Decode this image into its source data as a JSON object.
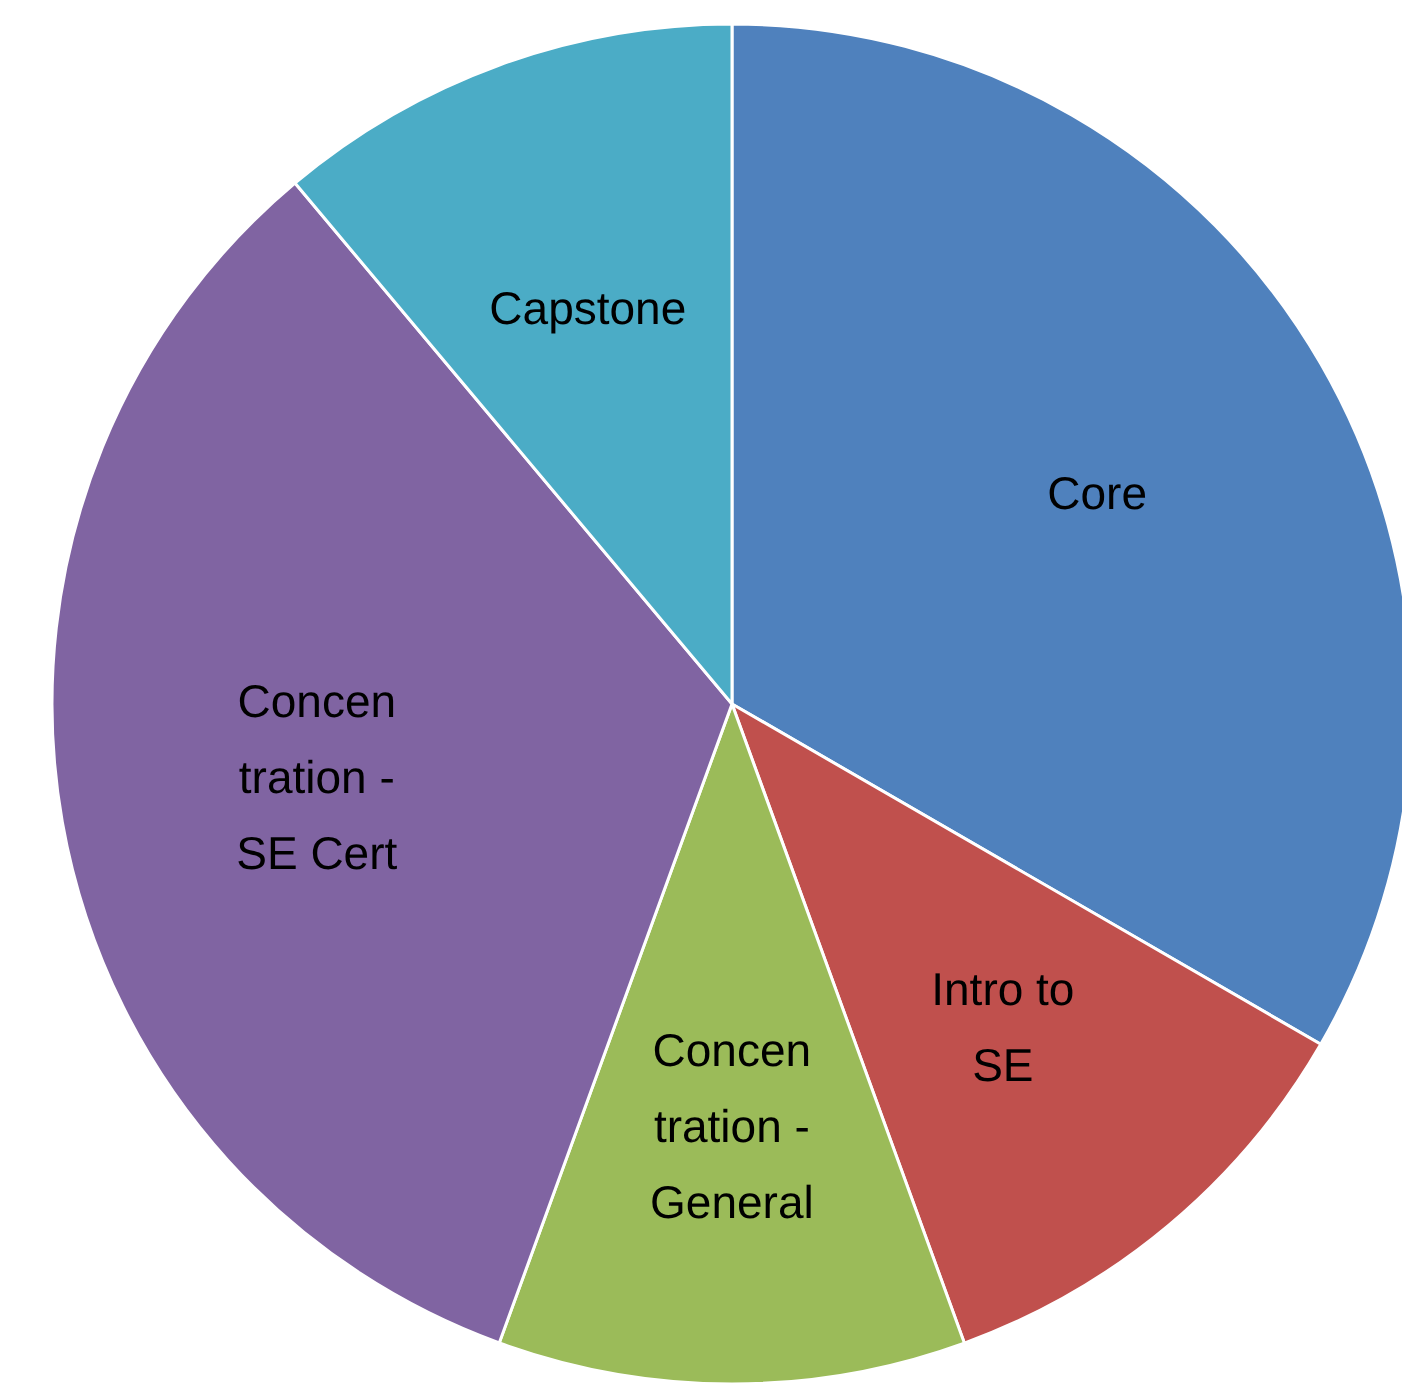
{
  "chart_data": {
    "type": "pie",
    "categories": [
      "Core",
      "Intro to SE",
      "Concentration - General",
      "Concentration - SE Cert",
      "Capstone"
    ],
    "values": [
      33.34,
      11.11,
      11.11,
      33.33,
      11.11
    ],
    "colors": [
      "#4f81bd",
      "#c0504d",
      "#9bbb59",
      "#8064a2",
      "#4bacc6"
    ],
    "legend": false
  }
}
